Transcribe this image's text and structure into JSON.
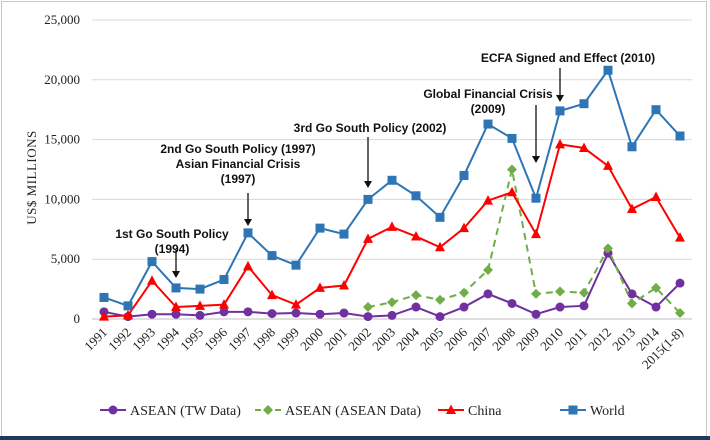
{
  "chart_data": {
    "type": "line",
    "ylabel": "US$ MILLIONS",
    "ylim": [
      0,
      25000
    ],
    "yticks": [
      "0",
      "5,000",
      "10,000",
      "15,000",
      "20,000",
      "25,000"
    ],
    "yticks_values": [
      0,
      5000,
      10000,
      15000,
      20000,
      25000
    ],
    "categories": [
      "1991",
      "1992",
      "1993",
      "1994",
      "1995",
      "1996",
      "1997",
      "1998",
      "1999",
      "2000",
      "2001",
      "2002",
      "2003",
      "2004",
      "2005",
      "2006",
      "2007",
      "2008",
      "2009",
      "2010",
      "2011",
      "2012",
      "2013",
      "2014",
      "2015(1-8)"
    ],
    "grid": "horizontal",
    "legend_position": "bottom",
    "series": [
      {
        "name": "ASEAN (TW Data)",
        "color": "#7030a0",
        "marker": "circle",
        "dash": "solid",
        "values": [
          600,
          200,
          400,
          400,
          300,
          600,
          600,
          450,
          500,
          400,
          500,
          200,
          300,
          1000,
          200,
          1000,
          2100,
          1300,
          400,
          1000,
          1100,
          5500,
          2100,
          1000,
          3000
        ]
      },
      {
        "name": "ASEAN (ASEAN Data)",
        "color": "#70ad47",
        "marker": "diamond",
        "dash": "dashed",
        "values": [
          null,
          null,
          null,
          null,
          null,
          null,
          null,
          null,
          null,
          null,
          null,
          1000,
          1400,
          2000,
          1600,
          2200,
          4100,
          12500,
          2100,
          2300,
          2200,
          5900,
          1300,
          2600,
          500
        ]
      },
      {
        "name": "China",
        "color": "#ff0000",
        "marker": "triangle",
        "dash": "solid",
        "values": [
          200,
          300,
          3200,
          1000,
          1100,
          1200,
          4400,
          2000,
          1200,
          2600,
          2800,
          6700,
          7700,
          6900,
          6000,
          7600,
          9900,
          10600,
          7100,
          14600,
          14300,
          12800,
          9200,
          10200,
          6800
        ]
      },
      {
        "name": "World",
        "color": "#2e75b6",
        "marker": "square",
        "dash": "solid",
        "values": [
          1800,
          1100,
          4800,
          2600,
          2500,
          3300,
          7200,
          5300,
          4500,
          7600,
          7100,
          10000,
          11600,
          10300,
          8500,
          12000,
          16300,
          15100,
          10100,
          17400,
          18000,
          20800,
          14400,
          17500,
          15300
        ]
      }
    ],
    "annotations": [
      {
        "lines": [
          "1st Go South Policy",
          "(1994)"
        ],
        "category": "1994"
      },
      {
        "lines": [
          "2nd Go South Policy (1997)",
          "Asian Financial Crisis",
          "(1997)"
        ],
        "category": "1997"
      },
      {
        "lines": [
          "3rd Go South Policy (2002)"
        ],
        "category": "2002"
      },
      {
        "lines": [
          "Global Financial Crisis",
          "(2009)"
        ],
        "category": "2009"
      },
      {
        "lines": [
          "ECFA Signed and Effect (2010)"
        ],
        "category": "2010"
      }
    ]
  }
}
